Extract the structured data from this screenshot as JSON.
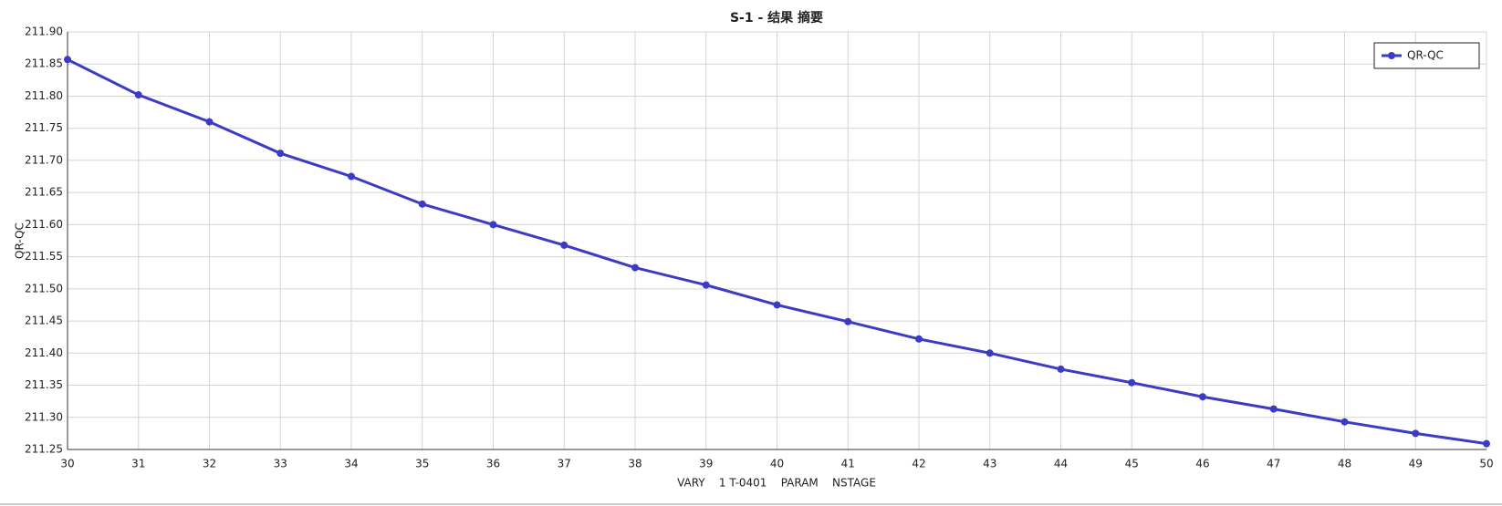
{
  "chart_data": {
    "type": "line",
    "title": "S-1 - 结果 摘要",
    "x_label": "VARY    1 T-0401    PARAM    NSTAGE",
    "y_label": "QR-QC",
    "x": [
      30,
      31,
      32,
      33,
      34,
      35,
      36,
      37,
      38,
      39,
      40,
      41,
      42,
      43,
      44,
      45,
      46,
      47,
      48,
      49,
      50
    ],
    "series": [
      {
        "name": "QR-QC",
        "color": "#3b3bc4",
        "values": [
          211.857,
          211.802,
          211.76,
          211.711,
          211.675,
          211.632,
          211.6,
          211.568,
          211.533,
          211.506,
          211.475,
          211.449,
          211.422,
          211.4,
          211.375,
          211.354,
          211.332,
          211.313,
          211.293,
          211.275,
          211.259
        ]
      }
    ],
    "xlim": [
      30,
      50
    ],
    "xticks": [
      30,
      31,
      32,
      33,
      34,
      35,
      36,
      37,
      38,
      39,
      40,
      41,
      42,
      43,
      44,
      45,
      46,
      47,
      48,
      49,
      50
    ],
    "ylim": [
      211.25,
      211.9
    ],
    "yticks": [
      211.25,
      {
        "value": 211.3,
        "label": "211.30"
      },
      211.35,
      {
        "value": 211.4,
        "label": "211.40"
      },
      211.45,
      {
        "value": 211.5,
        "label": "211.50"
      },
      211.55,
      {
        "value": 211.6,
        "label": "211.60"
      },
      211.65,
      {
        "value": 211.7,
        "label": "211.70"
      },
      211.75,
      {
        "value": 211.8,
        "label": "211.80"
      },
      211.85,
      {
        "value": 211.9,
        "label": "211.90"
      }
    ],
    "grid": true,
    "legend": "upper right"
  }
}
